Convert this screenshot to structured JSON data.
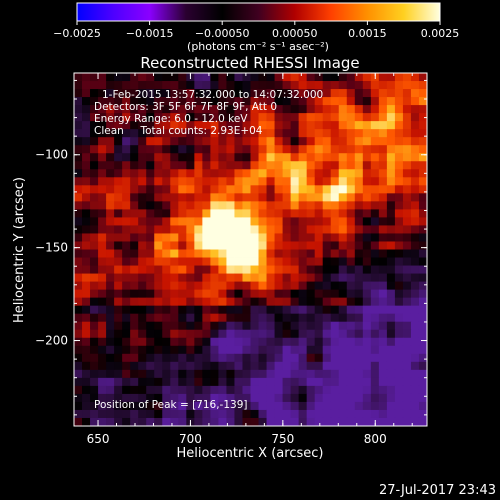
{
  "chart_data": {
    "type": "heatmap",
    "title": "Reconstructed RHESSI Image",
    "xlabel": "Heliocentric X (arcsec)",
    "ylabel": "Heliocentric Y (arcsec)",
    "xlim": [
      637,
      828
    ],
    "ylim": [
      -246,
      -56
    ],
    "x_ticks": [
      650,
      700,
      750,
      800
    ],
    "y_ticks": [
      -100,
      -150,
      -200
    ],
    "x_tick_labels": [
      "650",
      "700",
      "750",
      "800"
    ],
    "y_tick_labels": [
      "−100",
      "−150",
      "−200"
    ],
    "colorbar": {
      "range": [
        -0.0025,
        0.0025
      ],
      "ticks": [
        -0.0025,
        -0.0015,
        -0.0005,
        0.0005,
        0.0015,
        0.0025
      ],
      "tick_labels": [
        "−0.0025",
        "−0.0015",
        "−0.00050",
        "0.00050",
        "0.0015",
        "0.0025"
      ],
      "unit_label": "(photons cm⁻² s⁻¹ asec⁻²)",
      "colors": [
        "#0000ff",
        "#4d00ff",
        "#8a00ff",
        "#2a0030",
        "#000000",
        "#400020",
        "#b00000",
        "#ff4000",
        "#ff9000",
        "#ffd020",
        "#ffffe0"
      ]
    },
    "annotations": [
      "1-Feb-2015 13:57:32.000 to 14:07:32.000",
      "Detectors: 3F 5F 6F 7F 8F 9F, Att 0",
      "Energy Range: 6.0 - 12.0 keV",
      "Clean     Total counts: 2.93E+04"
    ],
    "peak_label": "Position of Peak = [716,-139]",
    "peak": {
      "x": 716,
      "y": -139
    }
  },
  "timestamp": "27-Jul-2017 23:43"
}
